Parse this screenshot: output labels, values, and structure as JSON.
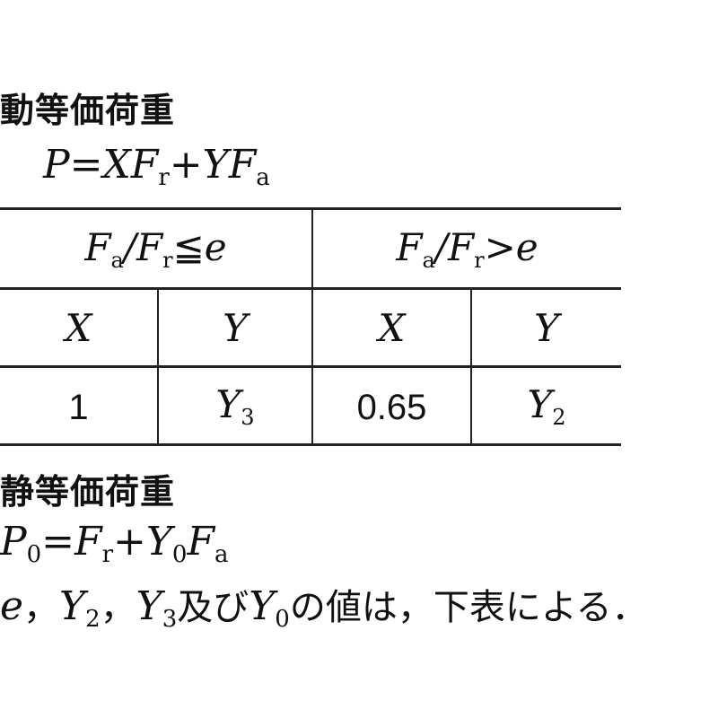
{
  "dynamic": {
    "heading": "動等価荷重",
    "formula": {
      "lhs": "P",
      "eq": "=",
      "t1": "XF",
      "s1": "r",
      "op": "+",
      "t2": "YF",
      "s2": "a"
    }
  },
  "table": {
    "header": [
      {
        "a": "F",
        "as": "a",
        "slash": "/",
        "b": "F",
        "bs": "r",
        "rel": "≦",
        "c": "e"
      },
      {
        "a": "F",
        "as": "a",
        "slash": "/",
        "b": "F",
        "bs": "r",
        "rel": ">",
        "c": "e"
      }
    ],
    "subheader": [
      "X",
      "Y",
      "X",
      "Y"
    ],
    "row": [
      {
        "v": "1",
        "numeric": true
      },
      {
        "v": "Y",
        "sub": "3"
      },
      {
        "v": "0.65",
        "numeric": true
      },
      {
        "v": "Y",
        "sub": "2"
      }
    ]
  },
  "static": {
    "heading": "静等価荷重",
    "formula": {
      "lhs": "P",
      "lsub": "0",
      "eq": "=",
      "t1": "F",
      "s1": "r",
      "op": "+",
      "t2": "Y",
      "s2": "0",
      "t3": "F",
      "s3": "a"
    }
  },
  "note": {
    "e": "e",
    "sep1": "，",
    "y2": "Y",
    "y2s": "2",
    "sep2": "，",
    "y3": "Y",
    "y3s": "3",
    "mid": "及び",
    "y0": "Y",
    "y0s": "0",
    "tail": "の値は，下表による．"
  }
}
